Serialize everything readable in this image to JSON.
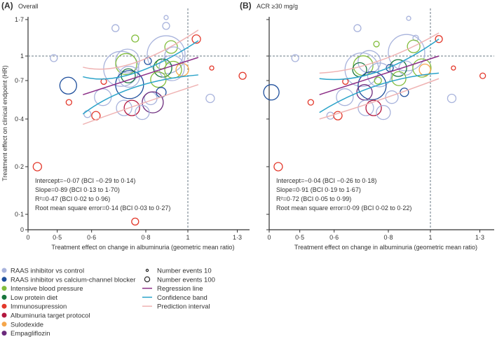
{
  "colors": {
    "rc": "#a8b3dc",
    "rccb": "#1f4f9c",
    "ibp": "#82bd3c",
    "lpd": "#17753c",
    "imm": "#e3382b",
    "atp": "#b3173f",
    "sul": "#f5a64b",
    "emp": "#6b2a7c",
    "regression": "#8b2d86",
    "confidence": "#2aa3c9",
    "prediction": "#efb3b3",
    "refline": "#6a7a86"
  },
  "chart_data": [
    {
      "type": "scatter",
      "panel_letter": "(A)",
      "title": "Overall",
      "xlabel": "Treatment effect on change in albuminuria (geometric mean ratio)",
      "ylabel": "Treatment effect on clinical endpoint (HR)",
      "x_ticks": [
        {
          "v": 0,
          "label": "0"
        },
        {
          "v": 0.5,
          "label": "0·5"
        },
        {
          "v": 0.6,
          "label": "0·6"
        },
        {
          "v": 0.8,
          "label": "0·8"
        },
        {
          "v": 1,
          "label": "1"
        },
        {
          "v": 1.3,
          "label": "1·3"
        }
      ],
      "y_ticks": [
        {
          "v": 0,
          "label": "0"
        },
        {
          "v": 0.1,
          "label": "0·1"
        },
        {
          "v": 0.2,
          "label": "0·2"
        },
        {
          "v": 0.4,
          "label": "0·4"
        },
        {
          "v": 0.7,
          "label": "0·7"
        },
        {
          "v": 1,
          "label": "1"
        },
        {
          "v": 1.7,
          "label": "1·7"
        }
      ],
      "scale": "log",
      "reference_lines": {
        "x": 1,
        "y": 1
      },
      "stats": [
        "Intercept=−0·07 (BCI −0·29 to 0·14)",
        "Slope=0·89 (BCI 0·13 to 1·70)",
        "R²=0·47 (BCI 0·02 to 0·96)",
        "Root mean square error=0·14 (BCI 0·03 to 0·27)"
      ],
      "points": [
        [
          0.891,
          1.75,
          56,
          "rc"
        ],
        [
          0.891,
          1.55,
          156,
          "rc"
        ],
        [
          0.681,
          1.5,
          156,
          "rc"
        ],
        [
          0.756,
          1.29,
          156,
          "ibp"
        ],
        [
          1.046,
          1.28,
          225,
          "imm"
        ],
        [
          0.891,
          1.02,
          4556,
          "rc"
        ],
        [
          0.915,
          1.14,
          506,
          "ibp"
        ],
        [
          0.491,
          0.97,
          156,
          "rc"
        ],
        [
          0.726,
          0.93,
          1806,
          "rc"
        ],
        [
          0.702,
          0.83,
          3906,
          "rc"
        ],
        [
          0.721,
          0.89,
          1406,
          "ibp"
        ],
        [
          0.809,
          0.93,
          156,
          "rccb"
        ],
        [
          0.928,
          1.0,
          1056,
          "rc"
        ],
        [
          0.868,
          0.89,
          306,
          "ibp"
        ],
        [
          0.875,
          0.84,
          1056,
          "lpd"
        ],
        [
          0.925,
          0.82,
          900,
          "ibp"
        ],
        [
          0.971,
          0.82,
          506,
          "sul"
        ],
        [
          0.918,
          0.84,
          2025,
          "rc"
        ],
        [
          1.135,
          0.84,
          56,
          "imm"
        ],
        [
          1.337,
          0.75,
          156,
          "imm"
        ],
        [
          0.729,
          0.75,
          625,
          "lpd"
        ],
        [
          0.732,
          0.74,
          1406,
          "rc"
        ],
        [
          0.855,
          0.71,
          756,
          "ibp"
        ],
        [
          0.64,
          0.69,
          100,
          "imm"
        ],
        [
          0.53,
          0.65,
          900,
          "rccb"
        ],
        [
          0.734,
          0.66,
          2500,
          "rccb"
        ],
        [
          0.868,
          0.59,
          306,
          "rccb"
        ],
        [
          0.637,
          0.55,
          900,
          "rc"
        ],
        [
          0.821,
          0.54,
          506,
          "rc"
        ],
        [
          0.83,
          0.51,
          1406,
          "emp"
        ],
        [
          1.126,
          0.54,
          225,
          "rc"
        ],
        [
          0.532,
          0.51,
          100,
          "imm"
        ],
        [
          0.713,
          0.47,
          756,
          "rc"
        ],
        [
          0.743,
          0.47,
          756,
          "atp"
        ],
        [
          0.785,
          0.44,
          625,
          "rc"
        ],
        [
          0.587,
          0.43,
          156,
          "rc"
        ],
        [
          0.614,
          0.42,
          225,
          "imm"
        ],
        [
          0.45,
          0.2,
          225,
          "imm"
        ],
        [
          0.756,
          0.09,
          156,
          "imm"
        ]
      ],
      "regression": [
        [
          0.573,
          0.57
        ],
        [
          1.057,
          0.98
        ]
      ],
      "confidence_upper": [
        [
          0.573,
          0.74
        ],
        [
          0.748,
          0.775
        ],
        [
          1.057,
          1.25
        ]
      ],
      "confidence_lower": [
        [
          0.573,
          0.43
        ],
        [
          0.748,
          0.63
        ],
        [
          1.057,
          0.76
        ]
      ],
      "prediction_upper": [
        [
          0.573,
          0.85
        ],
        [
          0.748,
          0.9
        ],
        [
          1.057,
          1.46
        ]
      ],
      "prediction_lower": [
        [
          0.573,
          0.37
        ],
        [
          0.748,
          0.48
        ],
        [
          1.057,
          0.66
        ]
      ]
    },
    {
      "type": "scatter",
      "panel_letter": "(B)",
      "title": "ACR ≥30 mg/g",
      "xlabel": "Treatment effect on change in albuminuria (geometric mean ratio)",
      "x_ticks": [
        {
          "v": 0,
          "label": "0"
        },
        {
          "v": 0.5,
          "label": "0·5"
        },
        {
          "v": 0.6,
          "label": "0·6"
        },
        {
          "v": 0.8,
          "label": "0·8"
        },
        {
          "v": 1,
          "label": "1"
        },
        {
          "v": 1.3,
          "label": "1·3"
        }
      ],
      "y_ticks": [
        {
          "v": 0
        },
        {
          "v": 0.1
        },
        {
          "v": 0.2
        },
        {
          "v": 0.4
        },
        {
          "v": 0.7
        },
        {
          "v": 1
        },
        {
          "v": 1.7
        }
      ],
      "scale": "log",
      "reference_lines": {
        "x": 1,
        "y": 1
      },
      "stats": [
        "Intercept=−0·04 (BCI −0·26 to 0·18)",
        "Slope=0·91 (BCI 0·19 to 1·67)",
        "R²=0·72 (BCI 0·05 to 0·99)",
        "Root mean square error=0·09 (BCI 0·02 to 0·22)"
      ],
      "points": [
        [
          0.891,
          1.73,
          56,
          "rc"
        ],
        [
          0.679,
          1.5,
          156,
          "rc"
        ],
        [
          0.925,
          1.3,
          100,
          "rc"
        ],
        [
          1.046,
          1.28,
          156,
          "imm"
        ],
        [
          0.751,
          1.19,
          100,
          "ibp"
        ],
        [
          0.881,
          1.05,
          4225,
          "rc"
        ],
        [
          0.915,
          1.15,
          506,
          "ibp"
        ],
        [
          0.488,
          0.97,
          156,
          "rc"
        ],
        [
          0.723,
          0.92,
          1600,
          "rc"
        ],
        [
          0.695,
          0.82,
          3600,
          "rc"
        ],
        [
          0.7,
          0.87,
          1225,
          "ibp"
        ],
        [
          0.687,
          0.82,
          625,
          "lpd"
        ],
        [
          0.843,
          0.84,
          900,
          "lpd"
        ],
        [
          0.878,
          0.84,
          625,
          "rc"
        ],
        [
          0.806,
          0.84,
          156,
          "rccb"
        ],
        [
          0.956,
          0.84,
          1056,
          "ibp"
        ],
        [
          0.971,
          0.82,
          400,
          "sul"
        ],
        [
          1.13,
          0.84,
          56,
          "imm"
        ],
        [
          1.32,
          0.75,
          100,
          "imm"
        ],
        [
          0.846,
          0.72,
          625,
          "ibp"
        ],
        [
          0.757,
          0.7,
          156,
          "ibp"
        ],
        [
          0.763,
          0.76,
          1806,
          "rc"
        ],
        [
          0.637,
          0.69,
          100,
          "imm"
        ],
        [
          0.43,
          0.59,
          756,
          "rccb"
        ],
        [
          0.734,
          0.65,
          2500,
          "rccb"
        ],
        [
          0.705,
          0.59,
          756,
          "emp"
        ],
        [
          0.871,
          0.59,
          225,
          "rccb"
        ],
        [
          0.635,
          0.55,
          900,
          "rc"
        ],
        [
          0.815,
          0.55,
          506,
          "rc"
        ],
        [
          1.12,
          0.54,
          225,
          "rc"
        ],
        [
          0.53,
          0.51,
          100,
          "imm"
        ],
        [
          0.71,
          0.47,
          756,
          "rc"
        ],
        [
          0.74,
          0.47,
          756,
          "atp"
        ],
        [
          0.779,
          0.44,
          625,
          "rc"
        ],
        [
          0.588,
          0.42,
          156,
          "rc"
        ],
        [
          0.612,
          0.42,
          225,
          "imm"
        ],
        [
          0.446,
          0.2,
          225,
          "imm"
        ]
      ],
      "regression": [
        [
          0.555,
          0.57
        ],
        [
          1.046,
          1.0
        ]
      ],
      "confidence_upper": [
        [
          0.555,
          0.72
        ],
        [
          0.751,
          0.79
        ],
        [
          1.046,
          1.28
        ]
      ],
      "confidence_lower": [
        [
          0.555,
          0.44
        ],
        [
          0.751,
          0.65
        ],
        [
          1.046,
          0.78
        ]
      ],
      "prediction_upper": [
        [
          0.555,
          0.78
        ],
        [
          0.751,
          0.92
        ],
        [
          1.046,
          1.4
        ]
      ],
      "prediction_lower": [
        [
          0.555,
          0.4
        ],
        [
          0.751,
          0.52
        ],
        [
          1.046,
          0.72
        ]
      ]
    }
  ],
  "legend": {
    "groups": [
      {
        "key": "rc",
        "label": "RAAS inhibitor vs control"
      },
      {
        "key": "rccb",
        "label": "RAAS inhibitor vs calcium-channel blocker"
      },
      {
        "key": "ibp",
        "label": "Intensive blood pressure"
      },
      {
        "key": "lpd",
        "label": "Low protein diet"
      },
      {
        "key": "imm",
        "label": "Immunosupression"
      },
      {
        "key": "atp",
        "label": "Albuminuria target protocol"
      },
      {
        "key": "sul",
        "label": "Sulodexide"
      },
      {
        "key": "emp",
        "label": "Empagliflozin"
      }
    ],
    "sizes": [
      {
        "events": 10,
        "label": "Number events 10"
      },
      {
        "events": 100,
        "label": "Number events 100"
      }
    ],
    "lines": [
      {
        "key": "regression",
        "label": "Regression line"
      },
      {
        "key": "confidence",
        "label": "Confidence band"
      },
      {
        "key": "prediction",
        "label": "Prediction interval"
      }
    ]
  }
}
